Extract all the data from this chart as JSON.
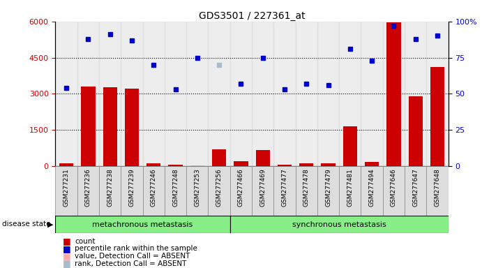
{
  "title": "GDS3501 / 227361_at",
  "samples": [
    "GSM277231",
    "GSM277236",
    "GSM277238",
    "GSM277239",
    "GSM277246",
    "GSM277248",
    "GSM277253",
    "GSM277256",
    "GSM277466",
    "GSM277469",
    "GSM277477",
    "GSM277478",
    "GSM277479",
    "GSM277481",
    "GSM277494",
    "GSM277646",
    "GSM277647",
    "GSM277648"
  ],
  "counts": [
    120,
    3300,
    3280,
    3200,
    130,
    70,
    30,
    700,
    200,
    680,
    50,
    130,
    130,
    1650,
    175,
    5950,
    2900,
    4100
  ],
  "percentile_ranks": [
    54,
    88,
    91,
    87,
    70,
    53,
    75,
    70,
    57,
    75,
    53,
    57,
    56,
    81,
    73,
    97,
    88,
    90
  ],
  "absent_value_idx": 6,
  "absent_rank_idx": 7,
  "group1_label": "metachronous metastasis",
  "group1_count": 8,
  "group2_label": "synchronous metastasis",
  "group2_count": 10,
  "ylim_left": [
    0,
    6000
  ],
  "ylim_right": [
    0,
    100
  ],
  "yticks_left": [
    0,
    1500,
    3000,
    4500,
    6000
  ],
  "yticks_right": [
    0,
    25,
    50,
    75,
    100
  ],
  "bar_color": "#CC0000",
  "dot_color": "#0000CC",
  "absent_value_bar_color": "#FFAAAA",
  "absent_rank_dot_color": "#AABBCC",
  "col_bg_color": "#DDDDDD",
  "group_bg_color": "#88EE88",
  "legend_items": [
    {
      "label": "count",
      "color": "#CC0000"
    },
    {
      "label": "percentile rank within the sample",
      "color": "#0000CC"
    },
    {
      "label": "value, Detection Call = ABSENT",
      "color": "#FFAAAA"
    },
    {
      "label": "rank, Detection Call = ABSENT",
      "color": "#AABBCC"
    }
  ]
}
